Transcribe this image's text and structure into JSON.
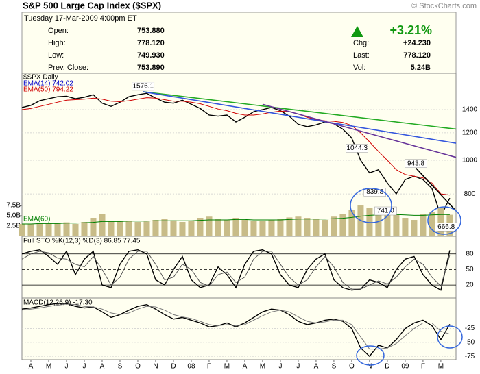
{
  "header": {
    "title": "S&P 500 Large Cap Index ($SPX)",
    "copyright": "© StockCharts.com",
    "datetime": "Tuesday 17-Mar-2009 4:00pm ET",
    "quote": [
      {
        "label": "Open:",
        "value": "753.880"
      },
      {
        "label": "High:",
        "value": "778.120"
      },
      {
        "label": "Low:",
        "value": "749.930"
      },
      {
        "label": "Prev. Close:",
        "value": "753.890"
      }
    ],
    "change_pct": "+3.21%",
    "stats": [
      {
        "label": "Chg:",
        "value": "+24.230"
      },
      {
        "label": "Last:",
        "value": "778.120"
      },
      {
        "label": "Vol:",
        "value": "5.24B"
      }
    ]
  },
  "chart_data": [
    {
      "type": "line",
      "log": true,
      "x": [
        -0.5,
        0,
        0.5,
        1,
        1.5,
        2,
        2.5,
        3,
        3.5,
        4,
        4.5,
        5,
        5.5,
        6,
        6.5,
        7,
        7.5,
        8,
        8.5,
        9,
        9.5,
        10,
        10.5,
        11,
        11.5,
        12,
        12.5,
        13,
        13.5,
        14,
        14.5,
        15,
        15.5,
        16,
        16.5,
        17,
        17.5,
        18,
        18.5,
        19,
        19.5,
        20,
        20.5,
        21,
        21.5,
        22,
        22.5,
        23,
        23.5
      ],
      "xlim": [
        -0.5,
        23.85
      ],
      "ylim": [
        604,
        1781
      ],
      "yticks": [
        800,
        1000,
        1200,
        1400
      ],
      "y2lim": [
        0,
        39.7
      ],
      "y2ticks": [
        {
          "value": 2.5,
          "label": "2.5B"
        },
        {
          "value": 5.0,
          "label": "5.0B"
        },
        {
          "value": 7.5,
          "label": "7.5B"
        }
      ],
      "series": [
        {
          "name": "$SPX Daily",
          "color": "#000000",
          "values": [
            1420,
            1440,
            1485,
            1505,
            1525,
            1530,
            1505,
            1520,
            1545,
            1460,
            1430,
            1470,
            1525,
            1545,
            1560,
            1510,
            1470,
            1460,
            1490,
            1450,
            1410,
            1350,
            1340,
            1350,
            1290,
            1330,
            1380,
            1400,
            1420,
            1390,
            1340,
            1270,
            1250,
            1265,
            1290,
            1275,
            1230,
            1160,
            1000,
            920,
            940,
            860,
            800,
            880,
            900,
            880,
            830,
            690,
            778.12
          ]
        },
        {
          "name": "EMA(50) 794.22",
          "color": "#d00000",
          "values": [
            1400,
            1410,
            1430,
            1450,
            1470,
            1490,
            1495,
            1500,
            1510,
            1500,
            1480,
            1475,
            1485,
            1500,
            1515,
            1510,
            1495,
            1480,
            1480,
            1470,
            1455,
            1430,
            1405,
            1390,
            1365,
            1350,
            1350,
            1360,
            1375,
            1385,
            1380,
            1360,
            1330,
            1310,
            1300,
            1295,
            1285,
            1260,
            1200,
            1130,
            1060,
            1000,
            940,
            910,
            900,
            890,
            860,
            800,
            794.22
          ]
        },
        {
          "color": "#c8bc88",
          "axis": "y2",
          "kind": "bar",
          "values": [
            3.0,
            3.0,
            3.2,
            3.1,
            3.3,
            3.4,
            3.0,
            3.5,
            4.5,
            5.5,
            3.8,
            3.6,
            3.8,
            3.5,
            3.6,
            4.0,
            4.2,
            3.9,
            3.5,
            3.8,
            4.5,
            4.8,
            4.2,
            4.0,
            4.5,
            4.0,
            3.8,
            3.8,
            4.0,
            4.2,
            4.6,
            4.8,
            4.5,
            4.2,
            4.0,
            4.8,
            5.5,
            6.5,
            7.5,
            7.0,
            6.0,
            6.5,
            5.5,
            4.5,
            4.0,
            5.5,
            6.0,
            7.0,
            5.24
          ]
        },
        {
          "name": "EMA(60)",
          "color": "#008000",
          "axis": "y2",
          "values": [
            3.0,
            3.0,
            3.1,
            3.1,
            3.1,
            3.2,
            3.2,
            3.3,
            3.4,
            3.6,
            3.6,
            3.6,
            3.7,
            3.7,
            3.7,
            3.8,
            3.8,
            3.8,
            3.8,
            3.8,
            3.9,
            4.0,
            4.0,
            4.0,
            4.1,
            4.1,
            4.0,
            4.0,
            4.0,
            4.0,
            4.1,
            4.2,
            4.2,
            4.2,
            4.2,
            4.3,
            4.4,
            4.6,
            4.9,
            5.1,
            5.2,
            5.3,
            5.3,
            5.2,
            5.1,
            5.1,
            5.2,
            5.3,
            5.3
          ]
        }
      ],
      "notes": [
        {
          "text": "EMA(14) 742.02",
          "color": "#0000cc"
        }
      ],
      "annotations": [
        {
          "text": "1576.1",
          "x": 6.3,
          "y": 1576.1
        },
        {
          "text": "1044.3",
          "x": 18.3,
          "y": 1044.3
        },
        {
          "text": "943.8",
          "x": 21.6,
          "y": 943.8
        },
        {
          "text": "839.8",
          "x": 19.3,
          "y": 839.8
        },
        {
          "text": "741.0",
          "x": 19.9,
          "y": 741.0
        },
        {
          "text": "666.8",
          "x": 23.3,
          "y": 666.8
        }
      ],
      "trendlines": [
        {
          "color": "#22aa22",
          "points": [
            [
              6.3,
              1576
            ],
            [
              23.85,
              1230
            ]
          ]
        },
        {
          "color": "#3355dd",
          "points": [
            [
              6.3,
              1576
            ],
            [
              23.85,
              1120
            ]
          ]
        },
        {
          "color": "#663399",
          "points": [
            [
              13,
              1450
            ],
            [
              23.85,
              1020
            ]
          ]
        },
        {
          "color": "#000000",
          "points": [
            [
              21.6,
              950
            ],
            [
              23.85,
              715
            ]
          ]
        }
      ]
    },
    {
      "type": "line",
      "title": "Full STO %K(12,3) %D(3) 86.85 77.45",
      "ylim": [
        -5,
        114
      ],
      "yticks": [
        20,
        50,
        80
      ],
      "series": [
        {
          "color": "#000000",
          "values": [
            80,
            85,
            88,
            75,
            60,
            85,
            40,
            70,
            85,
            20,
            15,
            60,
            85,
            88,
            80,
            30,
            20,
            50,
            75,
            30,
            15,
            20,
            55,
            40,
            15,
            60,
            85,
            88,
            80,
            40,
            20,
            15,
            50,
            70,
            80,
            30,
            15,
            10,
            12,
            30,
            25,
            15,
            50,
            70,
            75,
            40,
            20,
            10,
            86.85
          ]
        },
        {
          "color": "#555555",
          "values": [
            70,
            80,
            85,
            82,
            72,
            70,
            60,
            55,
            75,
            50,
            20,
            35,
            70,
            85,
            85,
            60,
            30,
            35,
            60,
            50,
            25,
            18,
            40,
            45,
            25,
            35,
            70,
            85,
            85,
            60,
            35,
            20,
            30,
            55,
            75,
            55,
            25,
            12,
            12,
            20,
            28,
            22,
            35,
            55,
            70,
            60,
            35,
            18,
            77.45
          ]
        }
      ]
    },
    {
      "type": "line",
      "title": "MACD(12,26,9) -17.30",
      "ylim": [
        -81,
        30
      ],
      "yticks": [
        -75,
        -50,
        -25
      ],
      "xticks": [
        {
          "value": 0,
          "label": "A"
        },
        {
          "value": 1,
          "label": "M"
        },
        {
          "value": 2,
          "label": "J"
        },
        {
          "value": 3,
          "label": "J"
        },
        {
          "value": 4,
          "label": "A"
        },
        {
          "value": 5,
          "label": "S"
        },
        {
          "value": 6,
          "label": "O"
        },
        {
          "value": 7,
          "label": "N"
        },
        {
          "value": 8,
          "label": "D"
        },
        {
          "value": 9,
          "label": "08"
        },
        {
          "value": 10,
          "label": "F"
        },
        {
          "value": 11,
          "label": "M"
        },
        {
          "value": 12,
          "label": "A"
        },
        {
          "value": 13,
          "label": "M"
        },
        {
          "value": 14,
          "label": "J"
        },
        {
          "value": 15,
          "label": "J"
        },
        {
          "value": 16,
          "label": "A"
        },
        {
          "value": 17,
          "label": "S"
        },
        {
          "value": 18,
          "label": "O"
        },
        {
          "value": 19,
          "label": "N"
        },
        {
          "value": 20,
          "label": "D"
        },
        {
          "value": 21,
          "label": "09"
        },
        {
          "value": 22,
          "label": "F"
        },
        {
          "value": 23,
          "label": "M"
        }
      ],
      "series": [
        {
          "color": "#000000",
          "values": [
            10,
            12,
            15,
            18,
            20,
            20,
            15,
            12,
            14,
            5,
            -5,
            0,
            8,
            15,
            18,
            10,
            0,
            -8,
            -5,
            -10,
            -15,
            -22,
            -20,
            -15,
            -22,
            -15,
            -5,
            5,
            10,
            8,
            0,
            -12,
            -18,
            -15,
            -10,
            -8,
            -12,
            -25,
            -60,
            -75,
            -55,
            -60,
            -45,
            -25,
            -15,
            -10,
            -20,
            -45,
            -17.3
          ]
        },
        {
          "color": "#777777",
          "values": [
            8,
            10,
            12,
            15,
            17,
            19,
            18,
            15,
            14,
            10,
            3,
            0,
            3,
            10,
            15,
            14,
            8,
            0,
            -4,
            -7,
            -12,
            -18,
            -20,
            -18,
            -20,
            -18,
            -10,
            -2,
            5,
            8,
            5,
            -4,
            -12,
            -15,
            -13,
            -10,
            -10,
            -18,
            -40,
            -62,
            -62,
            -60,
            -52,
            -38,
            -25,
            -15,
            -15,
            -30,
            -35
          ]
        }
      ]
    }
  ]
}
